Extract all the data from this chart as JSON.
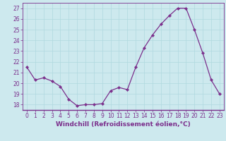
{
  "x": [
    0,
    1,
    2,
    3,
    4,
    5,
    6,
    7,
    8,
    9,
    10,
    11,
    12,
    13,
    14,
    15,
    16,
    17,
    18,
    19,
    20,
    21,
    22,
    23
  ],
  "y": [
    21.5,
    20.3,
    20.5,
    20.2,
    19.7,
    18.5,
    17.9,
    18.0,
    18.0,
    18.1,
    19.3,
    19.6,
    19.4,
    21.5,
    23.3,
    24.5,
    25.5,
    26.3,
    27.0,
    27.0,
    25.0,
    22.8,
    20.3,
    19.0
  ],
  "line_color": "#7b2f8c",
  "marker": "D",
  "marker_size": 2.2,
  "bg_color": "#cde9ee",
  "grid_color": "#b0d8df",
  "xlabel": "Windchill (Refroidissement éolien,°C)",
  "ylim": [
    17.5,
    27.5
  ],
  "xlim": [
    -0.5,
    23.5
  ],
  "yticks": [
    18,
    19,
    20,
    21,
    22,
    23,
    24,
    25,
    26,
    27
  ],
  "xticks": [
    0,
    1,
    2,
    3,
    4,
    5,
    6,
    7,
    8,
    9,
    10,
    11,
    12,
    13,
    14,
    15,
    16,
    17,
    18,
    19,
    20,
    21,
    22,
    23
  ],
  "tick_label_size": 5.5,
  "xlabel_size": 6.5,
  "linewidth": 0.9
}
